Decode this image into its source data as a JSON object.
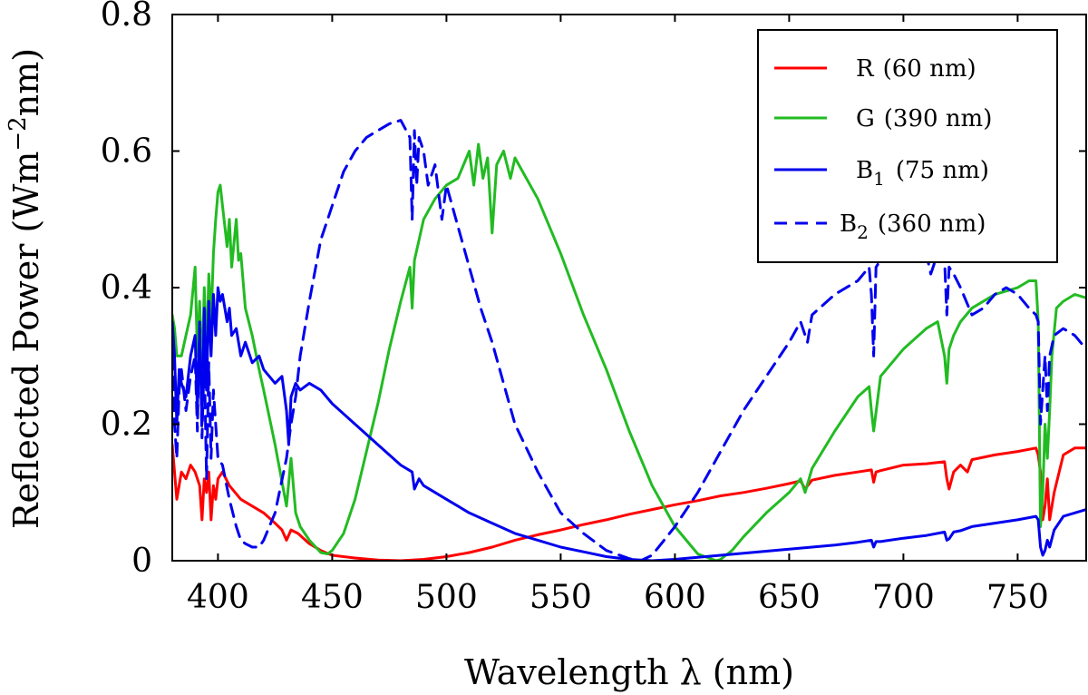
{
  "chart_data": {
    "type": "line",
    "title": "",
    "xlabel": "Wavelength λ (nm)",
    "ylabel_main": "Reflected Power (Wm",
    "ylabel_sup": "−2",
    "ylabel_tail": "nm)",
    "xlim": [
      380,
      780
    ],
    "ylim": [
      0,
      0.8
    ],
    "xticks": [
      400,
      450,
      500,
      550,
      600,
      650,
      700,
      750
    ],
    "yticks": [
      0,
      0.2,
      0.4,
      0.6,
      0.8
    ],
    "ytick_labels": [
      "0",
      "0.2",
      "0.4",
      "0.6",
      "0.8"
    ],
    "grid": false,
    "legend_position": "top-right",
    "series": [
      {
        "name": "R (60 nm)",
        "label_main": "R",
        "label_sub": "",
        "label_tail": "(60 nm)",
        "color": "#ff0000",
        "dash": "solid",
        "x": [
          380,
          381,
          382,
          384,
          386,
          388,
          390,
          392,
          393,
          394,
          395,
          396,
          397,
          398,
          399,
          400,
          402,
          405,
          410,
          415,
          420,
          425,
          428,
          430,
          432,
          435,
          440,
          445,
          450,
          460,
          470,
          480,
          490,
          500,
          510,
          520,
          530,
          540,
          550,
          560,
          570,
          580,
          590,
          600,
          610,
          620,
          630,
          640,
          650,
          655,
          657,
          660,
          670,
          680,
          686,
          687,
          688,
          690,
          700,
          710,
          718,
          719,
          720,
          722,
          725,
          728,
          730,
          740,
          750,
          758,
          759,
          760,
          761,
          762,
          763,
          764,
          766,
          770,
          775,
          780
        ],
        "y": [
          0.17,
          0.13,
          0.09,
          0.13,
          0.12,
          0.14,
          0.13,
          0.11,
          0.06,
          0.12,
          0.1,
          0.13,
          0.06,
          0.11,
          0.09,
          0.12,
          0.13,
          0.11,
          0.09,
          0.08,
          0.07,
          0.055,
          0.045,
          0.03,
          0.045,
          0.04,
          0.025,
          0.015,
          0.008,
          0.004,
          0.001,
          0.0,
          0.002,
          0.006,
          0.012,
          0.02,
          0.03,
          0.038,
          0.045,
          0.053,
          0.06,
          0.068,
          0.075,
          0.082,
          0.088,
          0.095,
          0.1,
          0.106,
          0.113,
          0.117,
          0.105,
          0.118,
          0.125,
          0.13,
          0.133,
          0.115,
          0.13,
          0.132,
          0.14,
          0.142,
          0.145,
          0.12,
          0.105,
          0.13,
          0.14,
          0.13,
          0.148,
          0.155,
          0.16,
          0.165,
          0.155,
          0.13,
          0.06,
          0.08,
          0.12,
          0.06,
          0.1,
          0.155,
          0.165,
          0.165
        ]
      },
      {
        "name": "G (390 nm)",
        "label_main": "G",
        "label_sub": "",
        "label_tail": "(390 nm)",
        "color": "#22bb22",
        "dash": "solid",
        "x": [
          380,
          381,
          382,
          384,
          386,
          388,
          390,
          391,
          392,
          393,
          394,
          395,
          396,
          397,
          398,
          399,
          400,
          401,
          402,
          404,
          405,
          406,
          408,
          409,
          410,
          412,
          415,
          418,
          420,
          425,
          430,
          432,
          434,
          436,
          440,
          445,
          448,
          450,
          455,
          460,
          465,
          470,
          475,
          480,
          484,
          485,
          486,
          488,
          490,
          495,
          500,
          505,
          510,
          512,
          514,
          516,
          518,
          520,
          522,
          525,
          528,
          530,
          535,
          540,
          545,
          550,
          560,
          570,
          580,
          590,
          600,
          610,
          618,
          620,
          625,
          630,
          640,
          650,
          655,
          657,
          660,
          670,
          680,
          685,
          686,
          687,
          690,
          700,
          710,
          715,
          718,
          719,
          720,
          722,
          725,
          730,
          735,
          740,
          745,
          750,
          755,
          758,
          759,
          760,
          761,
          762,
          763,
          764,
          765,
          767,
          770,
          775,
          780
        ],
        "y": [
          0.36,
          0.34,
          0.3,
          0.3,
          0.33,
          0.36,
          0.43,
          0.3,
          0.38,
          0.27,
          0.4,
          0.3,
          0.42,
          0.35,
          0.45,
          0.5,
          0.54,
          0.55,
          0.52,
          0.46,
          0.5,
          0.43,
          0.5,
          0.44,
          0.45,
          0.37,
          0.33,
          0.28,
          0.25,
          0.17,
          0.08,
          0.15,
          0.07,
          0.05,
          0.03,
          0.012,
          0.01,
          0.015,
          0.04,
          0.09,
          0.16,
          0.23,
          0.31,
          0.38,
          0.43,
          0.37,
          0.44,
          0.47,
          0.5,
          0.53,
          0.55,
          0.56,
          0.6,
          0.55,
          0.61,
          0.56,
          0.59,
          0.48,
          0.58,
          0.6,
          0.56,
          0.59,
          0.56,
          0.53,
          0.49,
          0.45,
          0.36,
          0.28,
          0.19,
          0.11,
          0.05,
          0.01,
          0.0,
          0.002,
          0.015,
          0.035,
          0.07,
          0.1,
          0.12,
          0.1,
          0.135,
          0.19,
          0.24,
          0.255,
          0.22,
          0.19,
          0.27,
          0.31,
          0.34,
          0.35,
          0.3,
          0.26,
          0.31,
          0.33,
          0.35,
          0.37,
          0.38,
          0.39,
          0.395,
          0.4,
          0.41,
          0.41,
          0.35,
          0.05,
          0.1,
          0.2,
          0.15,
          0.22,
          0.3,
          0.37,
          0.38,
          0.39,
          0.385
        ]
      },
      {
        "name": "B1 (75 nm)",
        "label_main": "B",
        "label_sub": "1",
        "label_tail": "(75 nm)",
        "color": "#0000ee",
        "dash": "solid",
        "x": [
          380,
          381,
          382,
          383,
          384,
          386,
          388,
          390,
          391,
          392,
          393,
          394,
          395,
          396,
          397,
          398,
          399,
          400,
          401,
          402,
          404,
          405,
          406,
          408,
          410,
          412,
          415,
          418,
          420,
          425,
          428,
          430,
          431,
          432,
          434,
          436,
          440,
          445,
          450,
          460,
          470,
          480,
          485,
          486,
          488,
          490,
          500,
          510,
          520,
          530,
          540,
          550,
          560,
          570,
          580,
          590,
          600,
          610,
          620,
          630,
          640,
          650,
          660,
          670,
          680,
          686,
          687,
          688,
          690,
          700,
          710,
          718,
          719,
          720,
          722,
          725,
          730,
          740,
          750,
          758,
          759,
          760,
          761,
          762,
          763,
          764,
          766,
          770,
          775,
          780
        ],
        "y": [
          0.35,
          0.3,
          0.2,
          0.28,
          0.26,
          0.24,
          0.3,
          0.33,
          0.22,
          0.34,
          0.2,
          0.37,
          0.25,
          0.38,
          0.3,
          0.39,
          0.33,
          0.4,
          0.38,
          0.39,
          0.35,
          0.37,
          0.33,
          0.34,
          0.3,
          0.32,
          0.29,
          0.3,
          0.28,
          0.26,
          0.27,
          0.22,
          0.17,
          0.24,
          0.26,
          0.25,
          0.26,
          0.25,
          0.23,
          0.2,
          0.17,
          0.14,
          0.13,
          0.105,
          0.12,
          0.11,
          0.09,
          0.07,
          0.055,
          0.04,
          0.03,
          0.02,
          0.013,
          0.006,
          0.002,
          0.0,
          0.002,
          0.005,
          0.008,
          0.011,
          0.014,
          0.017,
          0.02,
          0.023,
          0.027,
          0.03,
          0.02,
          0.028,
          0.028,
          0.033,
          0.037,
          0.042,
          0.03,
          0.032,
          0.042,
          0.044,
          0.05,
          0.055,
          0.06,
          0.065,
          0.06,
          0.02,
          0.008,
          0.015,
          0.03,
          0.02,
          0.045,
          0.065,
          0.07,
          0.075
        ]
      },
      {
        "name": "B2 (360 nm)",
        "label_main": "B",
        "label_sub": "2",
        "label_tail": "(360 nm)",
        "color": "#0000ee",
        "dash": "dashed",
        "x": [
          380,
          381,
          382,
          383,
          384,
          386,
          388,
          390,
          391,
          392,
          393,
          394,
          395,
          396,
          397,
          398,
          400,
          402,
          405,
          408,
          410,
          412,
          415,
          418,
          420,
          425,
          430,
          432,
          434,
          436,
          440,
          445,
          448,
          450,
          455,
          460,
          465,
          470,
          475,
          480,
          484,
          485,
          486,
          487,
          488,
          490,
          492,
          495,
          498,
          500,
          505,
          510,
          515,
          520,
          525,
          530,
          540,
          550,
          560,
          570,
          580,
          585,
          590,
          600,
          610,
          620,
          630,
          640,
          650,
          655,
          658,
          660,
          670,
          680,
          685,
          686,
          687,
          688,
          690,
          700,
          710,
          712,
          715,
          718,
          719,
          720,
          722,
          725,
          730,
          735,
          740,
          745,
          750,
          755,
          758,
          759,
          760,
          761,
          762,
          763,
          764,
          766,
          770,
          775,
          780
        ],
        "y": [
          0.33,
          0.2,
          0.15,
          0.25,
          0.28,
          0.22,
          0.27,
          0.3,
          0.19,
          0.35,
          0.18,
          0.3,
          0.12,
          0.29,
          0.15,
          0.25,
          0.15,
          0.14,
          0.09,
          0.05,
          0.03,
          0.025,
          0.02,
          0.02,
          0.03,
          0.07,
          0.15,
          0.2,
          0.24,
          0.3,
          0.38,
          0.47,
          0.5,
          0.52,
          0.57,
          0.6,
          0.62,
          0.63,
          0.64,
          0.645,
          0.62,
          0.5,
          0.63,
          0.55,
          0.62,
          0.6,
          0.55,
          0.58,
          0.5,
          0.55,
          0.49,
          0.43,
          0.37,
          0.32,
          0.26,
          0.2,
          0.13,
          0.07,
          0.04,
          0.015,
          0.003,
          0.0,
          0.008,
          0.05,
          0.1,
          0.16,
          0.22,
          0.27,
          0.32,
          0.35,
          0.32,
          0.36,
          0.39,
          0.41,
          0.43,
          0.39,
          0.3,
          0.43,
          0.44,
          0.44,
          0.45,
          0.42,
          0.45,
          0.44,
          0.36,
          0.43,
          0.42,
          0.4,
          0.36,
          0.37,
          0.39,
          0.4,
          0.39,
          0.37,
          0.36,
          0.35,
          0.2,
          0.25,
          0.3,
          0.22,
          0.3,
          0.33,
          0.34,
          0.33,
          0.31
        ]
      }
    ]
  }
}
